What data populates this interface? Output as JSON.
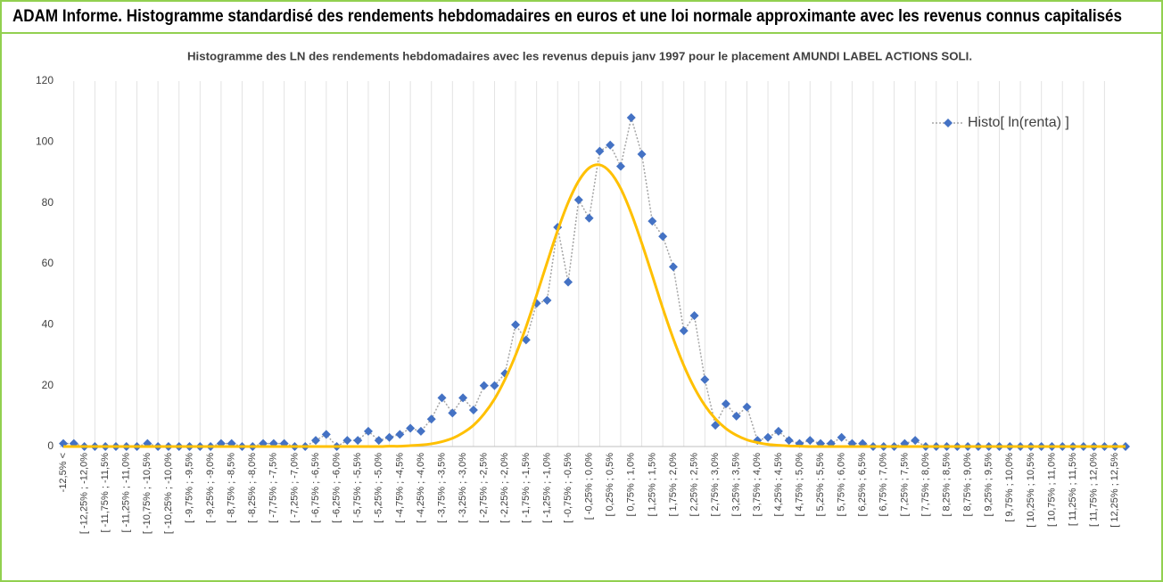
{
  "chart_data": {
    "type": "line",
    "title": "ADAM Informe. Histogramme standardisé des rendements hebdomadaires en euros et une loi normale approximante avec les revenus connus capitalisés",
    "subtitle": "Histogramme des LN des rendements hebdomadaires avec les revenus depuis janv 1997 pour le placement AMUNDI LABEL ACTIONS SOLI.",
    "categories": [
      "-12,5% <",
      null,
      "[ -12,25% ; -12,0%",
      null,
      "[ -11,75% ; -11,5%",
      null,
      "[ -11,25% ; -11,0%",
      null,
      "[ -10,75% ; -10,5%",
      null,
      "[ -10,25% ; -10,0%",
      null,
      "[ -9,75% ; -9,5%",
      null,
      "[ -9,25% ; -9,0%",
      null,
      "[ -8,75% ; -8,5%",
      null,
      "[ -8,25% ; -8,0%",
      null,
      "[ -7,75% ; -7,5%",
      null,
      "[ -7,25% ; -7,0%",
      null,
      "[ -6,75% ; -6,5%",
      null,
      "[ -6,25% ; -6,0%",
      null,
      "[ -5,75% ; -5,5%",
      null,
      "[ -5,25% ; -5,0%",
      null,
      "[ -4,75% ; -4,5%",
      null,
      "[ -4,25% ; -4,0%",
      null,
      "[ -3,75% ; -3,5%",
      null,
      "[ -3,25% ; -3,0%",
      null,
      "[ -2,75% ; -2,5%",
      null,
      "[ -2,25% ; -2,0%",
      null,
      "[ -1,75% ; -1,5%",
      null,
      "[ -1,25% ; -1,0%",
      null,
      "[ -0,75% ; -0,5%",
      null,
      "[ -0,25% ; 0,0%",
      null,
      "[ 0,25% ; 0,5%",
      null,
      "[ 0,75% ; 1,0%",
      null,
      "[ 1,25% ; 1,5%",
      null,
      "[ 1,75% ; 2,0%",
      null,
      "[ 2,25% ; 2,5%",
      null,
      "[ 2,75% ; 3,0%",
      null,
      "[ 3,25% ; 3,5%",
      null,
      "[ 3,75% ; 4,0%",
      null,
      "[ 4,25% ; 4,5%",
      null,
      "[ 4,75% ; 5,0%",
      null,
      "[ 5,25% ; 5,5%",
      null,
      "[ 5,75% ; 6,0%",
      null,
      "[ 6,25% ; 6,5%",
      null,
      "[ 6,75% ; 7,0%",
      null,
      "[ 7,25% ; 7,5%",
      null,
      "[ 7,75% ; 8,0%",
      null,
      "[ 8,25% ; 8,5%",
      null,
      "[ 8,75% ; 9,0%",
      null,
      "[ 9,25% ; 9,5%",
      null,
      "[ 9,75% ; 10,0%",
      null,
      "[ 10,25% ; 10,5%",
      null,
      "[ 10,75% ; 11,0%",
      null,
      "[ 11,25% ; 11,5%",
      null,
      "[ 11,75% ; 12,0%",
      null,
      "[ 12,25% ; 12,5%",
      null
    ],
    "series": [
      {
        "name": "Histo[ ln(renta) ]",
        "color": "#4472c4",
        "line_color": "#a5a5a5",
        "marker": "diamond",
        "line_style": "dotted",
        "values": [
          1,
          1,
          0,
          0,
          0,
          0,
          0,
          0,
          1,
          0,
          0,
          0,
          0,
          0,
          0,
          1,
          1,
          0,
          0,
          1,
          1,
          1,
          0,
          0,
          2,
          4,
          0,
          2,
          2,
          5,
          2,
          3,
          4,
          6,
          5,
          9,
          16,
          11,
          16,
          12,
          20,
          20,
          24,
          40,
          35,
          47,
          48,
          72,
          54,
          81,
          75,
          97,
          99,
          92,
          108,
          96,
          74,
          69,
          59,
          38,
          43,
          22,
          7,
          14,
          10,
          13,
          2,
          3,
          5,
          2,
          1,
          2,
          1,
          1,
          3,
          1,
          1,
          0,
          0,
          0,
          1,
          2,
          0,
          0,
          0,
          0,
          0,
          0,
          0,
          0,
          0,
          0,
          0,
          0,
          0,
          0,
          0,
          0,
          0,
          0,
          0,
          0
        ]
      },
      {
        "color": "#ffc000",
        "line_style": "solid",
        "marker": "none",
        "values": [
          0,
          0,
          0,
          0,
          0,
          0,
          0,
          0,
          0,
          0,
          0,
          0,
          0,
          0,
          0,
          0,
          0,
          0,
          0,
          0,
          0,
          0,
          0,
          0,
          0,
          0,
          0,
          0,
          0,
          0,
          0,
          0.1,
          0.1,
          0.3,
          0.5,
          0.9,
          1.6,
          2.7,
          4.5,
          7.0,
          10.7,
          15.6,
          22.1,
          30.0,
          39.3,
          49.7,
          60.4,
          70.9,
          80.1,
          87.2,
          91.5,
          92.5,
          90.1,
          84.7,
          76.6,
          66.8,
          56.2,
          45.4,
          35.4,
          26.6,
          19.3,
          13.5,
          9.1,
          5.9,
          3.7,
          2.2,
          1.3,
          0.7,
          0.4,
          0.2,
          0.1,
          0,
          0,
          0,
          0,
          0,
          0,
          0,
          0,
          0,
          0,
          0,
          0,
          0,
          0,
          0,
          0,
          0,
          0,
          0,
          0,
          0,
          0,
          0,
          0,
          0,
          0,
          0,
          0,
          0,
          0,
          0
        ]
      }
    ],
    "ylim": [
      0,
      120
    ],
    "yticks": [
      0,
      20,
      40,
      60,
      80,
      100,
      120
    ],
    "grid": "x",
    "legend": "top-right"
  }
}
